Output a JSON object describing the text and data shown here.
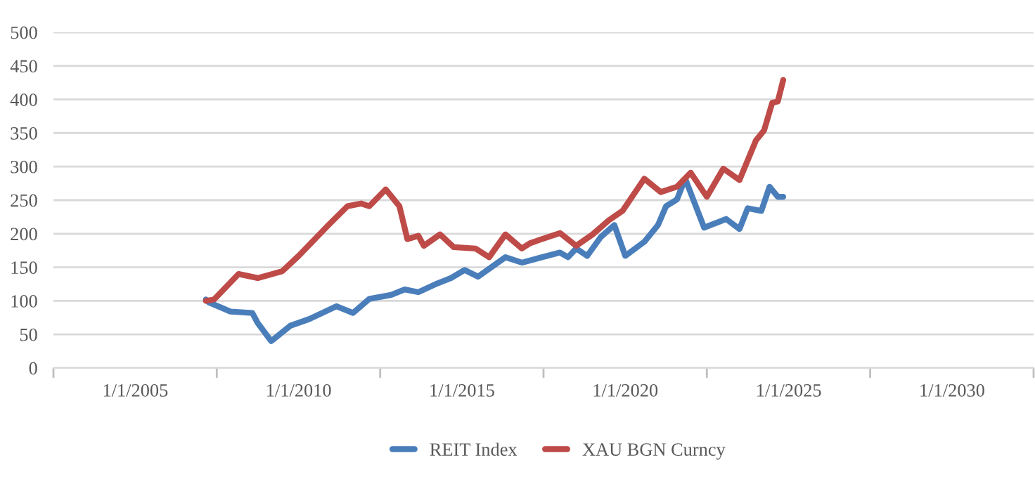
{
  "chart_data": {
    "type": "line",
    "series": [
      {
        "name": "REIT Index",
        "color": "#4a7ebb",
        "x": [
          "2007-03",
          "2007-04",
          "2007-12",
          "2008-08",
          "2008-10",
          "2009-03",
          "2009-10",
          "2010-05",
          "2011-03",
          "2011-09",
          "2012-03",
          "2012-11",
          "2013-04",
          "2013-09",
          "2014-04",
          "2014-09",
          "2015-02",
          "2015-07",
          "2016-05",
          "2016-11",
          "2018-01",
          "2018-04",
          "2018-07",
          "2018-11",
          "2019-04",
          "2019-09",
          "2020-01",
          "2020-08",
          "2021-01",
          "2021-04",
          "2021-08",
          "2021-11",
          "2022-06",
          "2023-02",
          "2023-07",
          "2023-10",
          "2024-03",
          "2024-06",
          "2024-09",
          "2024-11"
        ],
        "values": [
          102,
          98,
          84,
          82,
          67,
          40,
          63,
          73,
          92,
          82,
          103,
          109,
          117,
          113,
          126,
          134,
          146,
          136,
          165,
          157,
          172,
          165,
          178,
          167,
          195,
          213,
          167,
          188,
          213,
          241,
          251,
          282,
          209,
          222,
          207,
          238,
          234,
          270,
          255,
          255
        ]
      },
      {
        "name": "XAU BGN Curncy",
        "color": "#be4b48",
        "x": [
          "2007-03",
          "2007-06",
          "2008-03",
          "2008-10",
          "2009-07",
          "2010-01",
          "2010-12",
          "2011-07",
          "2011-12",
          "2012-03",
          "2012-09",
          "2013-02",
          "2013-05",
          "2013-09",
          "2013-11",
          "2014-05",
          "2014-10",
          "2015-06",
          "2015-11",
          "2016-05",
          "2016-11",
          "2017-02",
          "2018-01",
          "2018-07",
          "2019-01",
          "2019-07",
          "2019-12",
          "2020-08",
          "2021-02",
          "2021-08",
          "2022-01",
          "2022-07",
          "2023-01",
          "2023-07",
          "2024-01",
          "2024-04",
          "2024-07",
          "2024-09",
          "2024-11"
        ],
        "values": [
          100,
          102,
          140,
          134,
          144,
          167,
          213,
          241,
          245,
          241,
          266,
          241,
          192,
          197,
          182,
          199,
          180,
          178,
          165,
          199,
          178,
          186,
          201,
          182,
          199,
          220,
          234,
          282,
          262,
          270,
          291,
          255,
          297,
          280,
          339,
          354,
          395,
          397,
          429
        ]
      }
    ],
    "xlim": [
      "2002-07",
      "2032-07"
    ],
    "xticks": [
      {
        "value": "2002-07",
        "label": null
      },
      {
        "value": "2005-01",
        "label": "1/1/2005"
      },
      {
        "value": "2007-07",
        "label": null
      },
      {
        "value": "2010-01",
        "label": "1/1/2010"
      },
      {
        "value": "2012-07",
        "label": null
      },
      {
        "value": "2015-01",
        "label": "1/1/2015"
      },
      {
        "value": "2017-07",
        "label": null
      },
      {
        "value": "2020-01",
        "label": "1/1/2020"
      },
      {
        "value": "2022-07",
        "label": null
      },
      {
        "value": "2025-01",
        "label": "1/1/2025"
      },
      {
        "value": "2027-07",
        "label": null
      },
      {
        "value": "2030-01",
        "label": "1/1/2030"
      },
      {
        "value": "2032-07",
        "label": null
      }
    ],
    "ylim": [
      0,
      500
    ],
    "yticks": [
      0,
      50,
      100,
      150,
      200,
      250,
      300,
      350,
      400,
      450,
      500
    ],
    "grid": "y",
    "legend": "bottom",
    "marker": "none",
    "line_style": "solid"
  }
}
